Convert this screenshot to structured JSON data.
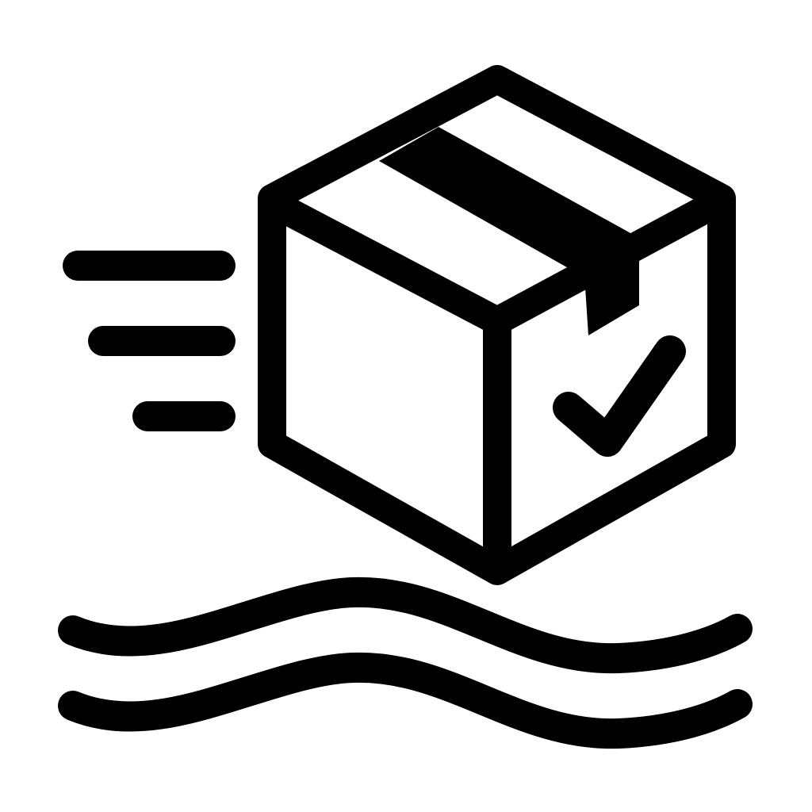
{
  "icon": {
    "name": "package-delivery-icon",
    "components": [
      "box-icon",
      "tape",
      "checkmark-icon",
      "speed-lines",
      "waves"
    ]
  },
  "colors": {
    "foreground": "#000000",
    "background": "#ffffff"
  }
}
